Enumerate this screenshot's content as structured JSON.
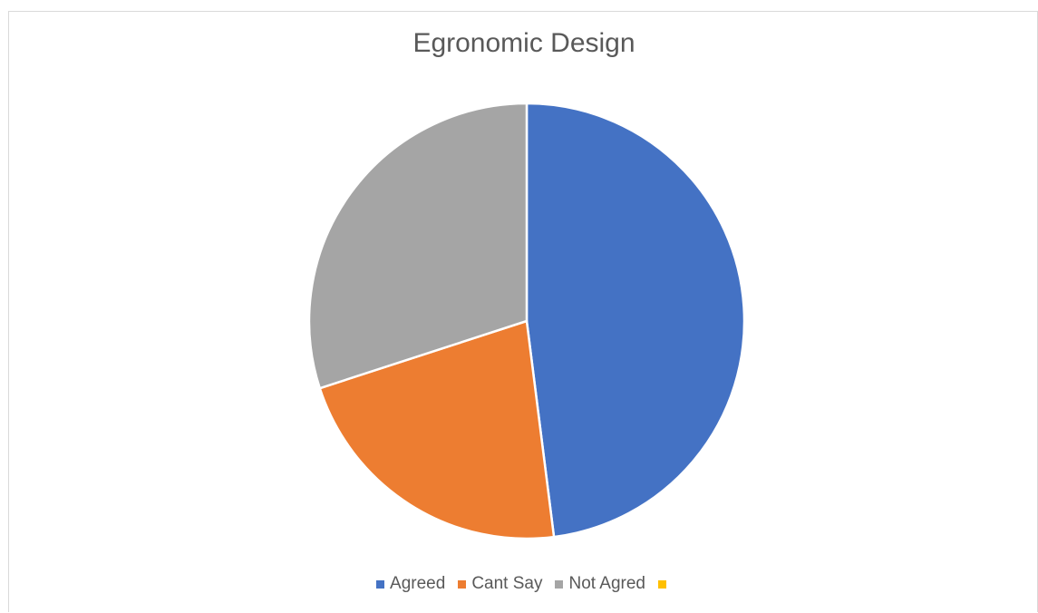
{
  "chart_data": {
    "type": "pie",
    "title": "Egronomic Design",
    "categories": [
      "Agreed",
      "Cant Say",
      "Not Agred",
      ""
    ],
    "values": [
      48,
      22,
      30,
      0
    ],
    "colors": [
      "#4472c4",
      "#ed7d31",
      "#a5a5a5",
      "#ffc000"
    ],
    "legend_position": "bottom"
  }
}
